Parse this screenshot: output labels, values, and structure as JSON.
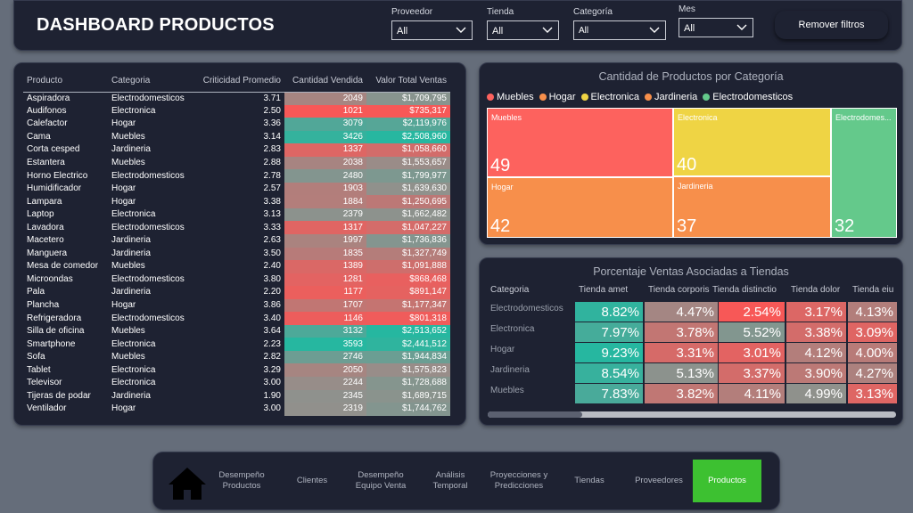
{
  "header": {
    "title": "DASHBOARD PRODUCTOS",
    "filters": [
      {
        "label": "Proveedor",
        "value": "All"
      },
      {
        "label": "Tienda",
        "value": "All"
      },
      {
        "label": "Categoría",
        "value": "All"
      },
      {
        "label": "Mes",
        "value": "All"
      }
    ],
    "remove_filters": "Remover filtros"
  },
  "table": {
    "headers": [
      "Producto",
      "Categoria",
      "Criticidad Promedio",
      "Cantidad Vendida",
      "Valor Total Ventas"
    ],
    "rows": [
      {
        "producto": "Aspiradora",
        "categoria": "Electrodomesticos",
        "criticidad": "3.71",
        "cantidad": "2049",
        "valor": "$1,709,795"
      },
      {
        "producto": "Audifonos",
        "categoria": "Electronica",
        "criticidad": "2.50",
        "cantidad": "1021",
        "valor": "$735,317"
      },
      {
        "producto": "Calefactor",
        "categoria": "Hogar",
        "criticidad": "3.36",
        "cantidad": "3079",
        "valor": "$2,119,976"
      },
      {
        "producto": "Cama",
        "categoria": "Muebles",
        "criticidad": "3.14",
        "cantidad": "3426",
        "valor": "$2,508,960"
      },
      {
        "producto": "Corta cesped",
        "categoria": "Jardineria",
        "criticidad": "2.83",
        "cantidad": "1337",
        "valor": "$1,058,660"
      },
      {
        "producto": "Estantera",
        "categoria": "Muebles",
        "criticidad": "2.88",
        "cantidad": "2038",
        "valor": "$1,553,657"
      },
      {
        "producto": "Horno Electrico",
        "categoria": "Electrodomesticos",
        "criticidad": "2.78",
        "cantidad": "2480",
        "valor": "$1,799,977"
      },
      {
        "producto": "Humidificador",
        "categoria": "Hogar",
        "criticidad": "2.57",
        "cantidad": "1903",
        "valor": "$1,639,630"
      },
      {
        "producto": "Lampara",
        "categoria": "Hogar",
        "criticidad": "3.38",
        "cantidad": "1884",
        "valor": "$1,250,695"
      },
      {
        "producto": "Laptop",
        "categoria": "Electronica",
        "criticidad": "3.13",
        "cantidad": "2379",
        "valor": "$1,662,482"
      },
      {
        "producto": "Lavadora",
        "categoria": "Electrodomesticos",
        "criticidad": "3.33",
        "cantidad": "1317",
        "valor": "$1,047,227"
      },
      {
        "producto": "Macetero",
        "categoria": "Jardineria",
        "criticidad": "2.63",
        "cantidad": "1997",
        "valor": "$1,736,836"
      },
      {
        "producto": "Manguera",
        "categoria": "Jardineria",
        "criticidad": "3.50",
        "cantidad": "1835",
        "valor": "$1,327,749"
      },
      {
        "producto": "Mesa de comedor",
        "categoria": "Muebles",
        "criticidad": "2.40",
        "cantidad": "1389",
        "valor": "$1,091,888"
      },
      {
        "producto": "Microondas",
        "categoria": "Electrodomesticos",
        "criticidad": "3.80",
        "cantidad": "1281",
        "valor": "$868,468"
      },
      {
        "producto": "Pala",
        "categoria": "Jardineria",
        "criticidad": "2.20",
        "cantidad": "1177",
        "valor": "$891,147"
      },
      {
        "producto": "Plancha",
        "categoria": "Hogar",
        "criticidad": "3.86",
        "cantidad": "1707",
        "valor": "$1,177,347"
      },
      {
        "producto": "Refrigeradora",
        "categoria": "Electrodomesticos",
        "criticidad": "3.40",
        "cantidad": "1146",
        "valor": "$801,318"
      },
      {
        "producto": "Silla de oficina",
        "categoria": "Muebles",
        "criticidad": "3.64",
        "cantidad": "3132",
        "valor": "$2,513,652"
      },
      {
        "producto": "Smartphone",
        "categoria": "Electronica",
        "criticidad": "2.23",
        "cantidad": "3593",
        "valor": "$2,441,512"
      },
      {
        "producto": "Sofa",
        "categoria": "Muebles",
        "criticidad": "2.82",
        "cantidad": "2746",
        "valor": "$1,944,834"
      },
      {
        "producto": "Tablet",
        "categoria": "Electronica",
        "criticidad": "3.29",
        "cantidad": "2050",
        "valor": "$1,575,823"
      },
      {
        "producto": "Televisor",
        "categoria": "Electronica",
        "criticidad": "3.00",
        "cantidad": "2244",
        "valor": "$1,728,688"
      },
      {
        "producto": "Tijeras de podar",
        "categoria": "Jardineria",
        "criticidad": "1.90",
        "cantidad": "2345",
        "valor": "$1,689,715"
      },
      {
        "producto": "Ventilador",
        "categoria": "Hogar",
        "criticidad": "3.00",
        "cantidad": "2319",
        "valor": "$1,744,762"
      }
    ]
  },
  "treemap": {
    "title": "Cantidad de Productos por Categoría",
    "legend": [
      {
        "name": "Muebles",
        "color": "#fd625e"
      },
      {
        "name": "Hogar",
        "color": "#f78f4b"
      },
      {
        "name": "Electronica",
        "color": "#efd444"
      },
      {
        "name": "Jardineria",
        "color": "#f78f4b"
      },
      {
        "name": "Electrodomesticos",
        "color": "#64c98b"
      }
    ],
    "tiles": [
      {
        "name": "Muebles",
        "value": "49",
        "color": "#fd625e"
      },
      {
        "name": "Electronica",
        "value": "40",
        "color": "#efd444"
      },
      {
        "name": "Electrodomes...",
        "value": "32",
        "color": "#64c98b"
      },
      {
        "name": "Hogar",
        "value": "42",
        "color": "#f78f4b"
      },
      {
        "name": "Jardineria",
        "value": "37",
        "color": "#f78f4b"
      }
    ]
  },
  "matrix": {
    "title": "Porcentaje Ventas Asociadas a Tiendas",
    "row_header": "Categoria",
    "columns": [
      "Tienda amet",
      "Tienda corporis",
      "Tienda distinctio",
      "Tienda dolor",
      "Tienda eiu"
    ],
    "rows": [
      {
        "label": "Electrodomesticos",
        "values": [
          "8.82%",
          "4.47%",
          "2.54%",
          "3.17%",
          "4.13%"
        ]
      },
      {
        "label": "Electronica",
        "values": [
          "7.97%",
          "3.78%",
          "5.52%",
          "3.38%",
          "3.09%"
        ]
      },
      {
        "label": "Hogar",
        "values": [
          "9.23%",
          "3.31%",
          "3.01%",
          "4.12%",
          "4.00%"
        ]
      },
      {
        "label": "Jardineria",
        "values": [
          "8.54%",
          "5.13%",
          "3.37%",
          "3.90%",
          "4.27%"
        ]
      },
      {
        "label": "Muebles",
        "values": [
          "7.83%",
          "3.82%",
          "4.11%",
          "4.99%",
          "3.13%"
        ]
      }
    ]
  },
  "nav": {
    "home_icon": "home-icon",
    "items": [
      {
        "label": "Desempeño Productos"
      },
      {
        "label": "Clientes"
      },
      {
        "label": "Desempeño Equipo Venta"
      },
      {
        "label": "Análisis Temporal"
      },
      {
        "label": "Proyecciones y Predicciones"
      },
      {
        "label": "Tiendas"
      },
      {
        "label": "Proveedores"
      },
      {
        "label": "Productos",
        "active": true
      }
    ]
  }
}
